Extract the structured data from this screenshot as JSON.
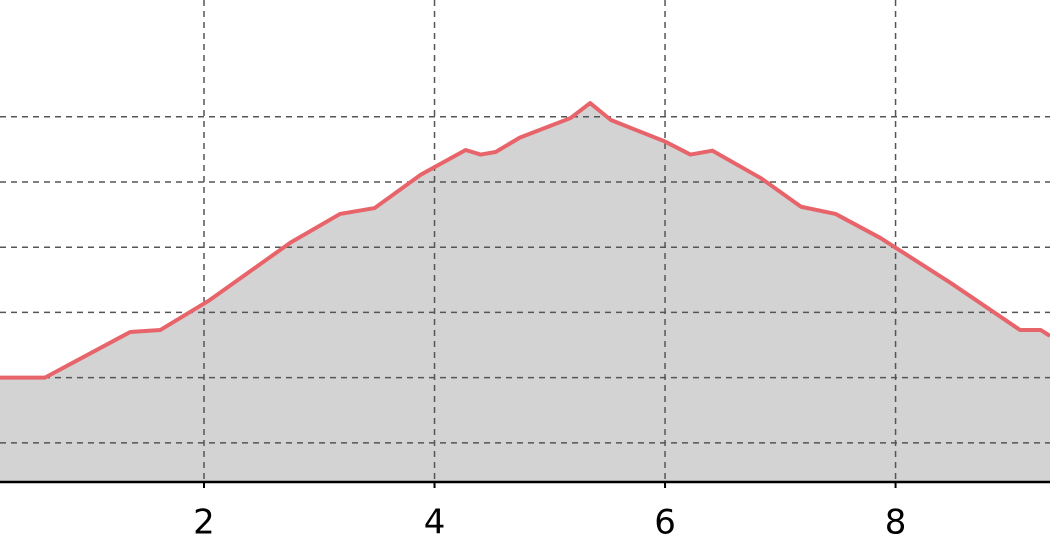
{
  "chart_data": {
    "type": "area",
    "x": [
      0.23,
      0.62,
      1.36,
      1.62,
      2.05,
      2.75,
      3.18,
      3.48,
      3.88,
      4.27,
      4.4,
      4.53,
      4.74,
      5.18,
      5.35,
      5.53,
      6.0,
      6.22,
      6.41,
      6.83,
      7.18,
      7.48,
      7.87,
      8.48,
      9.08,
      9.26,
      9.34
    ],
    "values": [
      20.0,
      20.0,
      27.0,
      27.3,
      31.9,
      40.7,
      45.1,
      46.0,
      51.1,
      54.9,
      54.2,
      54.6,
      56.8,
      59.8,
      62.1,
      59.5,
      56.2,
      54.2,
      54.8,
      50.6,
      46.2,
      45.1,
      41.4,
      34.5,
      27.3,
      27.3,
      26.4
    ],
    "color": "#e8646b",
    "fill": "#d3d3d3",
    "xlim": [
      0.23,
      9.34
    ],
    "xticks": [
      2,
      4,
      6,
      8
    ],
    "ylim": [
      4,
      77.9
    ],
    "yticks": [
      10,
      20,
      30,
      40,
      50,
      60
    ],
    "grid": true
  }
}
